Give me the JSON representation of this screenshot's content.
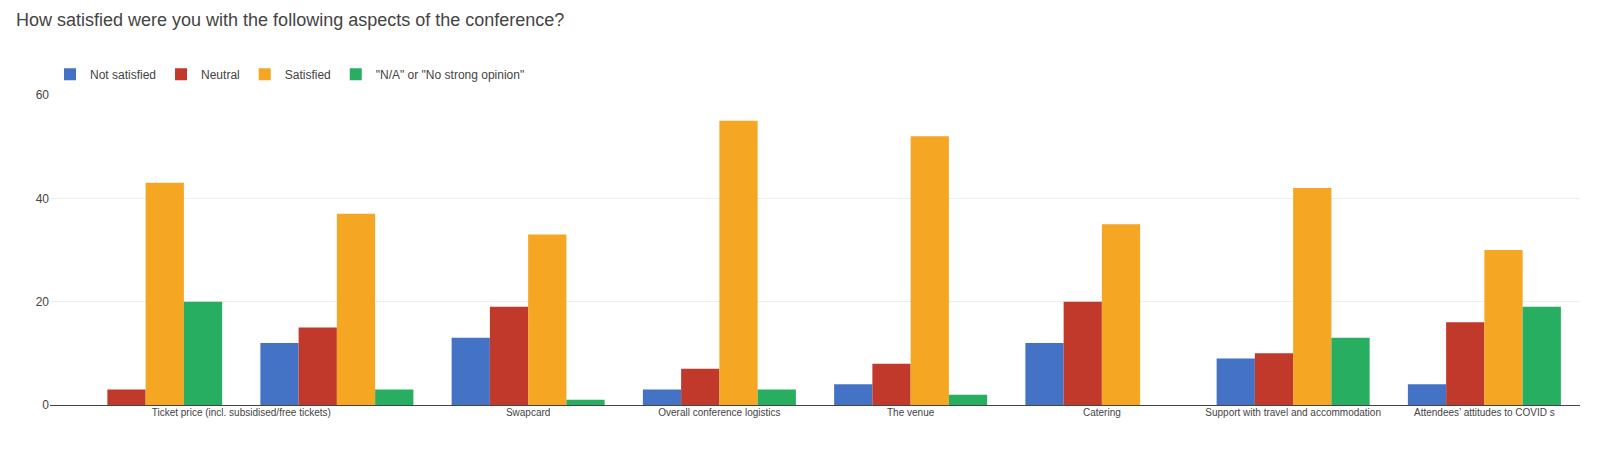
{
  "chart_data": {
    "type": "bar",
    "title": "How satisfied were you with the following aspects of the conference?",
    "categories": [
      "Ticket price (incl. subsidised/free tickets)",
      null,
      "Swapcard",
      "Overall conference logistics",
      "The venue",
      "Catering",
      "Support with travel and accommodation",
      "Attendees’ attitudes to COVID s"
    ],
    "series": [
      {
        "name": "Not satisfied",
        "color": "#4472c4",
        "values": [
          0,
          12,
          13,
          3,
          4,
          12,
          9,
          4
        ]
      },
      {
        "name": "Neutral",
        "color": "#c0392b",
        "values": [
          3,
          15,
          19,
          7,
          8,
          20,
          10,
          16
        ]
      },
      {
        "name": "Satisfied",
        "color": "#f5a623",
        "values": [
          43,
          37,
          33,
          55,
          52,
          35,
          42,
          30
        ]
      },
      {
        "name": "\"N/A\" or \"No strong opinion\"",
        "color": "#27ae60",
        "values": [
          20,
          3,
          1,
          3,
          2,
          0,
          13,
          19
        ]
      }
    ],
    "ylim": [
      0,
      60
    ],
    "yticks": [
      0,
      20,
      40,
      60
    ],
    "grid": true,
    "legend": "top-left"
  }
}
